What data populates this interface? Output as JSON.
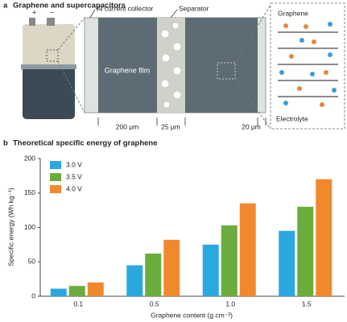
{
  "header": {
    "letter": "a",
    "title": "Graphene and supercapacitors"
  },
  "diagram": {
    "collector": "Al current collector",
    "separator": "Separator",
    "film": "Graphene film",
    "dims": [
      "200 μm",
      "25 μm",
      "20 μm"
    ],
    "zoom_top": "Graphene",
    "zoom_bottom": "Electrolyte"
  },
  "chart_data": {
    "type": "bar",
    "letter": "b",
    "title": "Theoretical specific energy of graphene",
    "y_label": "Specific energy (Wh kg⁻¹)",
    "x_label": "Graphene content (g cm⁻³)",
    "categories": [
      "0.1",
      "0.5",
      "1.0",
      "1.5"
    ],
    "series": [
      {
        "name": "3.0 V",
        "color": "#29a9e0",
        "values": [
          11,
          45,
          75,
          95
        ]
      },
      {
        "name": "3.5 V",
        "color": "#6aad3d",
        "values": [
          15,
          62,
          103,
          130
        ]
      },
      {
        "name": "4.0 V",
        "color": "#f0892e",
        "values": [
          20,
          82,
          135,
          170
        ]
      }
    ],
    "ylim": [
      0,
      200
    ],
    "yticks": [
      0,
      50,
      100,
      150,
      200
    ],
    "grid": false,
    "legend": "top-left"
  }
}
